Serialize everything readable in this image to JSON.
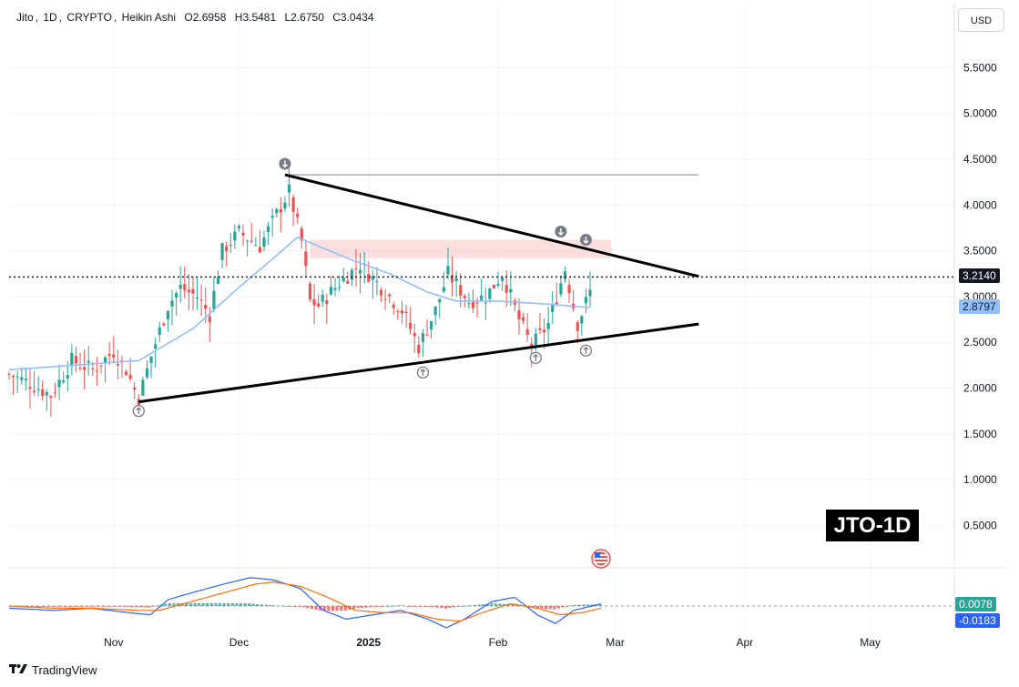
{
  "legend": {
    "symbol": "Jito",
    "interval": "1D",
    "exchange": "CRYPTO",
    "chart_style": "Heikin Ashi",
    "open": "O2.6958",
    "high": "H3.5481",
    "low": "L2.6750",
    "close": "C3.0434"
  },
  "currency_button": "USD",
  "watermark": "JTO-1D",
  "footer": {
    "brand": "TradingView"
  },
  "price_labels": {
    "current": "3.2140",
    "ma": "2.8797",
    "macd": "0.0078",
    "signal": "-0.0183"
  },
  "colors": {
    "up": "#26a69a",
    "down": "#ef5350",
    "ma": "#90bff9",
    "trendline": "#000000",
    "resistance_line": "#9e9e9e",
    "zone": "#f7c5c5",
    "macd_line": "#2962ff",
    "signal_line": "#ff6d00",
    "price_tag": "#131722",
    "ma_tag": "#90bff9",
    "macd_tag": "#26a69a",
    "signal_tag": "#2962ff",
    "arrow_marker": "#787b86"
  },
  "icons": [
    "arrow-down-circle-icon",
    "arrow-up-circle-icon",
    "us-flag-event-icon",
    "tradingview-logo-icon"
  ],
  "chart_data": {
    "type": "candlestick",
    "title": "Jito, 1D, CRYPTO, Heikin Ashi",
    "y_axis": {
      "ticks": [
        0.5,
        1.0,
        1.5,
        2.0,
        2.5,
        3.0,
        3.5,
        4.0,
        4.5,
        5.0,
        5.5
      ],
      "tick_labels": [
        "0.5000",
        "1.0000",
        "1.5000",
        "2.0000",
        "2.5000",
        "3.0000",
        "3.5000",
        "4.0000",
        "4.5000",
        "5.0000",
        "5.5000"
      ],
      "range": [
        0.2,
        6.0
      ]
    },
    "x_axis": {
      "labels": [
        "Nov",
        "Dec",
        "2025",
        "Feb",
        "Mar",
        "Apr",
        "May"
      ],
      "label_dates": [
        "2024-11-01",
        "2024-12-01",
        "2025-01-01",
        "2025-02-01",
        "2025-03-01",
        "2025-04-01",
        "2025-05-01"
      ],
      "range": [
        "2024-10-07",
        "2025-05-31"
      ]
    },
    "grid": true,
    "current_price": 3.214,
    "ma_value": 2.8797,
    "candles_close_keypoints": [
      {
        "date": "2024-10-07",
        "close": 2.15
      },
      {
        "date": "2024-10-12",
        "close": 2.05
      },
      {
        "date": "2024-10-17",
        "close": 1.92
      },
      {
        "date": "2024-10-22",
        "close": 2.3
      },
      {
        "date": "2024-10-27",
        "close": 2.2
      },
      {
        "date": "2024-11-01",
        "close": 2.4
      },
      {
        "date": "2024-11-04",
        "close": 2.2
      },
      {
        "date": "2024-11-07",
        "close": 1.88
      },
      {
        "date": "2024-11-10",
        "close": 2.35
      },
      {
        "date": "2024-11-14",
        "close": 2.9
      },
      {
        "date": "2024-11-17",
        "close": 3.1
      },
      {
        "date": "2024-11-21",
        "close": 3.0
      },
      {
        "date": "2024-11-24",
        "close": 2.8
      },
      {
        "date": "2024-11-27",
        "close": 3.5
      },
      {
        "date": "2024-12-01",
        "close": 3.7
      },
      {
        "date": "2024-12-06",
        "close": 3.55
      },
      {
        "date": "2024-12-10",
        "close": 3.9
      },
      {
        "date": "2024-12-13",
        "close": 4.15
      },
      {
        "date": "2024-12-16",
        "close": 3.6
      },
      {
        "date": "2024-12-18",
        "close": 2.95
      },
      {
        "date": "2024-12-20",
        "close": 2.9
      },
      {
        "date": "2024-12-25",
        "close": 3.15
      },
      {
        "date": "2024-12-30",
        "close": 3.35
      },
      {
        "date": "2025-01-04",
        "close": 3.1
      },
      {
        "date": "2025-01-09",
        "close": 2.85
      },
      {
        "date": "2025-01-13",
        "close": 2.45
      },
      {
        "date": "2025-01-17",
        "close": 2.85
      },
      {
        "date": "2025-01-20",
        "close": 3.25
      },
      {
        "date": "2025-01-25",
        "close": 2.95
      },
      {
        "date": "2025-01-29",
        "close": 3.0
      },
      {
        "date": "2025-02-02",
        "close": 3.25
      },
      {
        "date": "2025-02-06",
        "close": 2.75
      },
      {
        "date": "2025-02-09",
        "close": 2.45
      },
      {
        "date": "2025-02-13",
        "close": 2.7
      },
      {
        "date": "2025-02-17",
        "close": 3.3
      },
      {
        "date": "2025-02-20",
        "close": 2.7
      },
      {
        "date": "2025-02-23",
        "close": 3.05
      }
    ],
    "moving_average_keypoints": [
      {
        "date": "2024-10-07",
        "value": 2.2
      },
      {
        "date": "2024-11-07",
        "value": 2.3
      },
      {
        "date": "2024-11-20",
        "value": 2.65
      },
      {
        "date": "2024-12-01",
        "value": 3.1
      },
      {
        "date": "2024-12-10",
        "value": 3.45
      },
      {
        "date": "2024-12-15",
        "value": 3.65
      },
      {
        "date": "2024-12-20",
        "value": 3.55
      },
      {
        "date": "2024-12-28",
        "value": 3.4
      },
      {
        "date": "2025-01-06",
        "value": 3.25
      },
      {
        "date": "2025-01-15",
        "value": 3.05
      },
      {
        "date": "2025-01-22",
        "value": 2.95
      },
      {
        "date": "2025-02-01",
        "value": 2.95
      },
      {
        "date": "2025-02-12",
        "value": 2.92
      },
      {
        "date": "2025-02-23",
        "value": 2.88
      }
    ],
    "trendlines": {
      "upper": {
        "start": {
          "date": "2024-12-12",
          "value": 4.33
        },
        "end": {
          "date": "2025-03-21",
          "value": 3.22
        }
      },
      "lower": {
        "start": {
          "date": "2024-11-07",
          "value": 1.85
        },
        "end": {
          "date": "2025-03-21",
          "value": 2.7
        }
      },
      "horizontal": {
        "start": {
          "date": "2024-12-12",
          "value": 4.33
        },
        "end": {
          "date": "2025-03-21",
          "value": 4.33
        }
      }
    },
    "resistance_zone": {
      "x_start": "2024-12-18",
      "x_end": "2025-02-28",
      "y_low": 3.42,
      "y_high": 3.62
    },
    "markers": [
      {
        "date": "2024-11-07",
        "value": 1.75,
        "type": "up"
      },
      {
        "date": "2024-12-12",
        "value": 4.45,
        "type": "down"
      },
      {
        "date": "2025-01-14",
        "value": 2.17,
        "type": "up"
      },
      {
        "date": "2025-02-10",
        "value": 2.33,
        "type": "up"
      },
      {
        "date": "2025-02-16",
        "value": 3.71,
        "type": "down"
      },
      {
        "date": "2025-02-22",
        "value": 3.62,
        "type": "down"
      },
      {
        "date": "2025-02-22",
        "value": 2.41,
        "type": "up"
      }
    ],
    "macd_pane": {
      "current_macd": 0.0078,
      "current_signal": -0.0183,
      "zero_line": true
    }
  }
}
